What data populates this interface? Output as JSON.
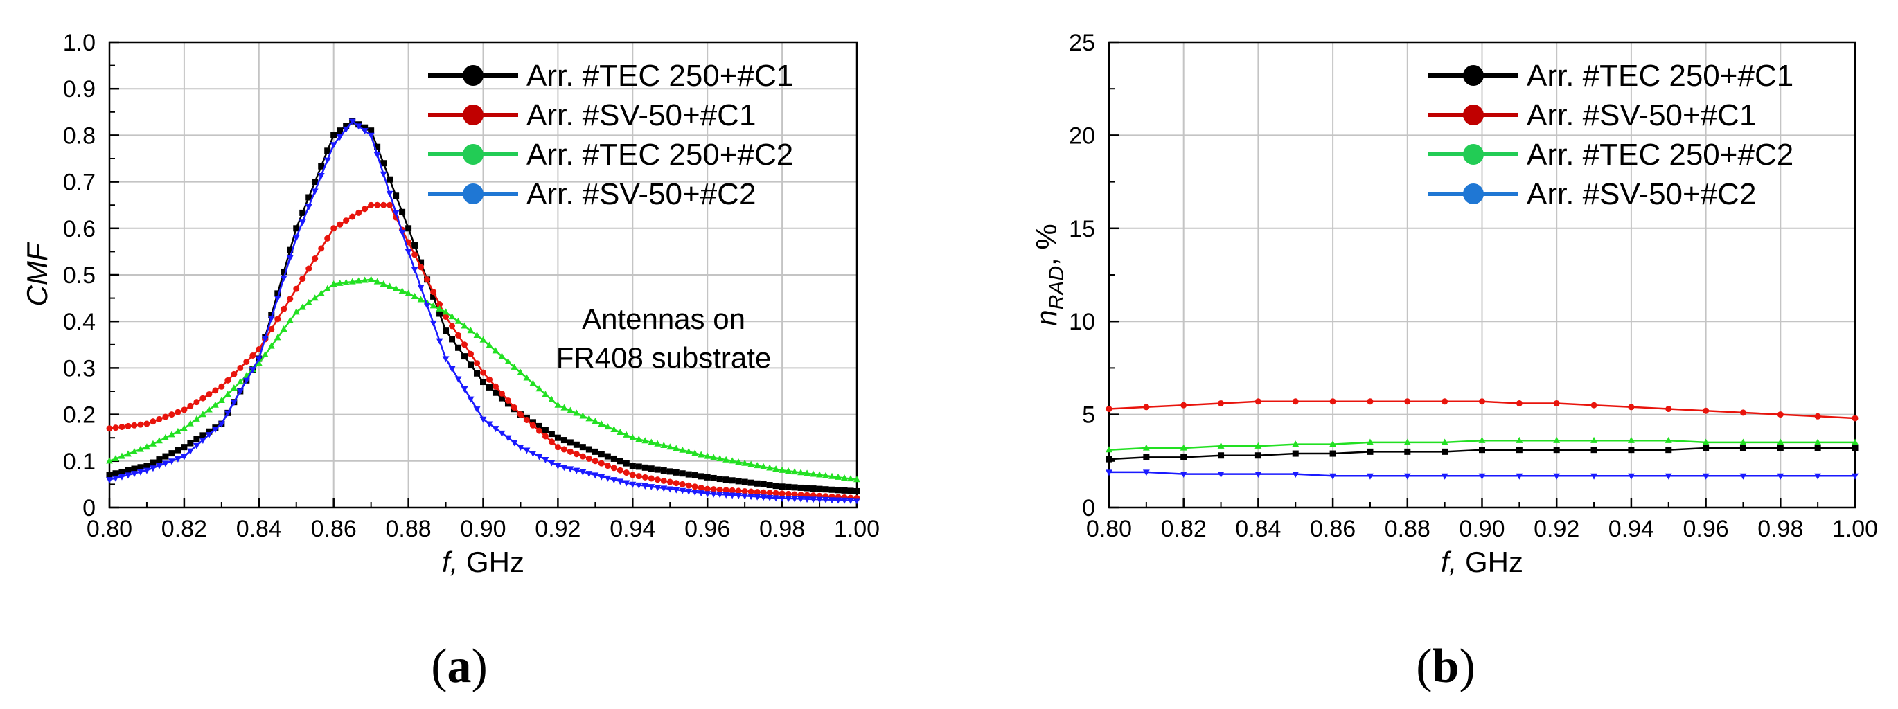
{
  "chart_data": [
    {
      "type": "line",
      "panel_label": "(a)",
      "panel_letter": "a",
      "title": "",
      "xlabel_italic": "f,",
      "xlabel_unit": "GHz",
      "ylabel": "CMF",
      "xlim": [
        0.8,
        1.0
      ],
      "ylim": [
        0.0,
        1.0
      ],
      "grid": true,
      "legend_position": "top-right",
      "x_ticks": [
        "0.80",
        "0.82",
        "0.84",
        "0.86",
        "0.88",
        "0.90",
        "0.92",
        "0.94",
        "0.96",
        "0.98",
        "1.00"
      ],
      "y_ticks": [
        "0",
        "0.1",
        "0.2",
        "0.3",
        "0.4",
        "0.5",
        "0.6",
        "0.7",
        "0.8",
        "0.9",
        "1.0"
      ],
      "annotation": [
        "Antennas on",
        "FR408 substrate"
      ],
      "series": [
        {
          "name": "Arr. #TEC 250+#C1",
          "color": "#000000",
          "marker": "square",
          "x": [
            0.8,
            0.81,
            0.82,
            0.83,
            0.84,
            0.85,
            0.86,
            0.865,
            0.87,
            0.88,
            0.89,
            0.9,
            0.91,
            0.92,
            0.94,
            0.96,
            0.98,
            1.0
          ],
          "y": [
            0.07,
            0.09,
            0.13,
            0.18,
            0.32,
            0.6,
            0.8,
            0.83,
            0.81,
            0.6,
            0.38,
            0.27,
            0.2,
            0.15,
            0.09,
            0.065,
            0.045,
            0.035
          ]
        },
        {
          "name": "Arr. #SV-50+#C1",
          "color": "#e8140c",
          "marker": "circle",
          "x": [
            0.8,
            0.81,
            0.82,
            0.83,
            0.84,
            0.85,
            0.86,
            0.87,
            0.875,
            0.88,
            0.89,
            0.9,
            0.91,
            0.92,
            0.94,
            0.96,
            0.98,
            1.0
          ],
          "y": [
            0.17,
            0.18,
            0.21,
            0.26,
            0.34,
            0.47,
            0.6,
            0.65,
            0.65,
            0.57,
            0.41,
            0.29,
            0.2,
            0.13,
            0.07,
            0.04,
            0.03,
            0.02
          ]
        },
        {
          "name": "Arr. #TEC 250+#C2",
          "color": "#22e022",
          "marker": "triangle-up",
          "x": [
            0.8,
            0.81,
            0.82,
            0.83,
            0.84,
            0.85,
            0.86,
            0.87,
            0.88,
            0.89,
            0.9,
            0.91,
            0.92,
            0.94,
            0.96,
            0.98,
            1.0
          ],
          "y": [
            0.1,
            0.13,
            0.17,
            0.23,
            0.31,
            0.42,
            0.48,
            0.49,
            0.46,
            0.42,
            0.36,
            0.29,
            0.22,
            0.15,
            0.11,
            0.08,
            0.06
          ]
        },
        {
          "name": "Arr. #SV-50+#C2",
          "color": "#1a1aff",
          "marker": "triangle-down",
          "x": [
            0.8,
            0.81,
            0.82,
            0.83,
            0.84,
            0.85,
            0.86,
            0.865,
            0.87,
            0.88,
            0.89,
            0.9,
            0.91,
            0.92,
            0.94,
            0.96,
            0.98,
            1.0
          ],
          "y": [
            0.06,
            0.08,
            0.11,
            0.18,
            0.32,
            0.58,
            0.78,
            0.83,
            0.8,
            0.55,
            0.32,
            0.19,
            0.13,
            0.09,
            0.05,
            0.03,
            0.02,
            0.015
          ]
        }
      ]
    },
    {
      "type": "line",
      "panel_label": "(b)",
      "panel_letter": "b",
      "title": "",
      "xlabel_italic": "f,",
      "xlabel_unit": "GHz",
      "ylabel_main": "n",
      "ylabel_sub": "RAD",
      "ylabel_suffix": ", %",
      "xlim": [
        0.8,
        1.0
      ],
      "ylim": [
        0,
        25
      ],
      "grid": true,
      "legend_position": "top-right",
      "x_ticks": [
        "0.80",
        "0.82",
        "0.84",
        "0.86",
        "0.88",
        "0.90",
        "0.92",
        "0.94",
        "0.96",
        "0.98",
        "1.00"
      ],
      "y_ticks": [
        "0",
        "5",
        "10",
        "15",
        "20",
        "25"
      ],
      "series": [
        {
          "name": "Arr. #TEC 250+#C1",
          "color": "#000000",
          "marker": "square",
          "x": [
            0.8,
            0.81,
            0.82,
            0.83,
            0.84,
            0.85,
            0.86,
            0.87,
            0.88,
            0.89,
            0.9,
            0.91,
            0.92,
            0.93,
            0.94,
            0.95,
            0.96,
            0.97,
            0.98,
            0.99,
            1.0
          ],
          "y": [
            2.6,
            2.7,
            2.7,
            2.8,
            2.8,
            2.9,
            2.9,
            3.0,
            3.0,
            3.0,
            3.1,
            3.1,
            3.1,
            3.1,
            3.1,
            3.1,
            3.2,
            3.2,
            3.2,
            3.2,
            3.2
          ]
        },
        {
          "name": "Arr. #SV-50+#C1",
          "color": "#e8140c",
          "marker": "circle",
          "x": [
            0.8,
            0.81,
            0.82,
            0.83,
            0.84,
            0.85,
            0.86,
            0.87,
            0.88,
            0.89,
            0.9,
            0.91,
            0.92,
            0.93,
            0.94,
            0.95,
            0.96,
            0.97,
            0.98,
            0.99,
            1.0
          ],
          "y": [
            5.3,
            5.4,
            5.5,
            5.6,
            5.7,
            5.7,
            5.7,
            5.7,
            5.7,
            5.7,
            5.7,
            5.6,
            5.6,
            5.5,
            5.4,
            5.3,
            5.2,
            5.1,
            5.0,
            4.9,
            4.8
          ]
        },
        {
          "name": "Arr. #TEC 250+#C2",
          "color": "#22e022",
          "marker": "triangle-up",
          "x": [
            0.8,
            0.81,
            0.82,
            0.83,
            0.84,
            0.85,
            0.86,
            0.87,
            0.88,
            0.89,
            0.9,
            0.91,
            0.92,
            0.93,
            0.94,
            0.95,
            0.96,
            0.97,
            0.98,
            0.99,
            1.0
          ],
          "y": [
            3.1,
            3.2,
            3.2,
            3.3,
            3.3,
            3.4,
            3.4,
            3.5,
            3.5,
            3.5,
            3.6,
            3.6,
            3.6,
            3.6,
            3.6,
            3.6,
            3.5,
            3.5,
            3.5,
            3.5,
            3.5
          ]
        },
        {
          "name": "Arr. #SV-50+#C2",
          "color": "#1a1aff",
          "marker": "triangle-down",
          "x": [
            0.8,
            0.81,
            0.82,
            0.83,
            0.84,
            0.85,
            0.86,
            0.87,
            0.88,
            0.89,
            0.9,
            0.91,
            0.92,
            0.93,
            0.94,
            0.95,
            0.96,
            0.97,
            0.98,
            0.99,
            1.0
          ],
          "y": [
            1.9,
            1.9,
            1.8,
            1.8,
            1.8,
            1.8,
            1.7,
            1.7,
            1.7,
            1.7,
            1.7,
            1.7,
            1.7,
            1.7,
            1.7,
            1.7,
            1.7,
            1.7,
            1.7,
            1.7,
            1.7
          ]
        }
      ]
    }
  ],
  "legend_marker_colors": [
    "#000000",
    "#c00000",
    "#22cc55",
    "#1f77d4"
  ]
}
